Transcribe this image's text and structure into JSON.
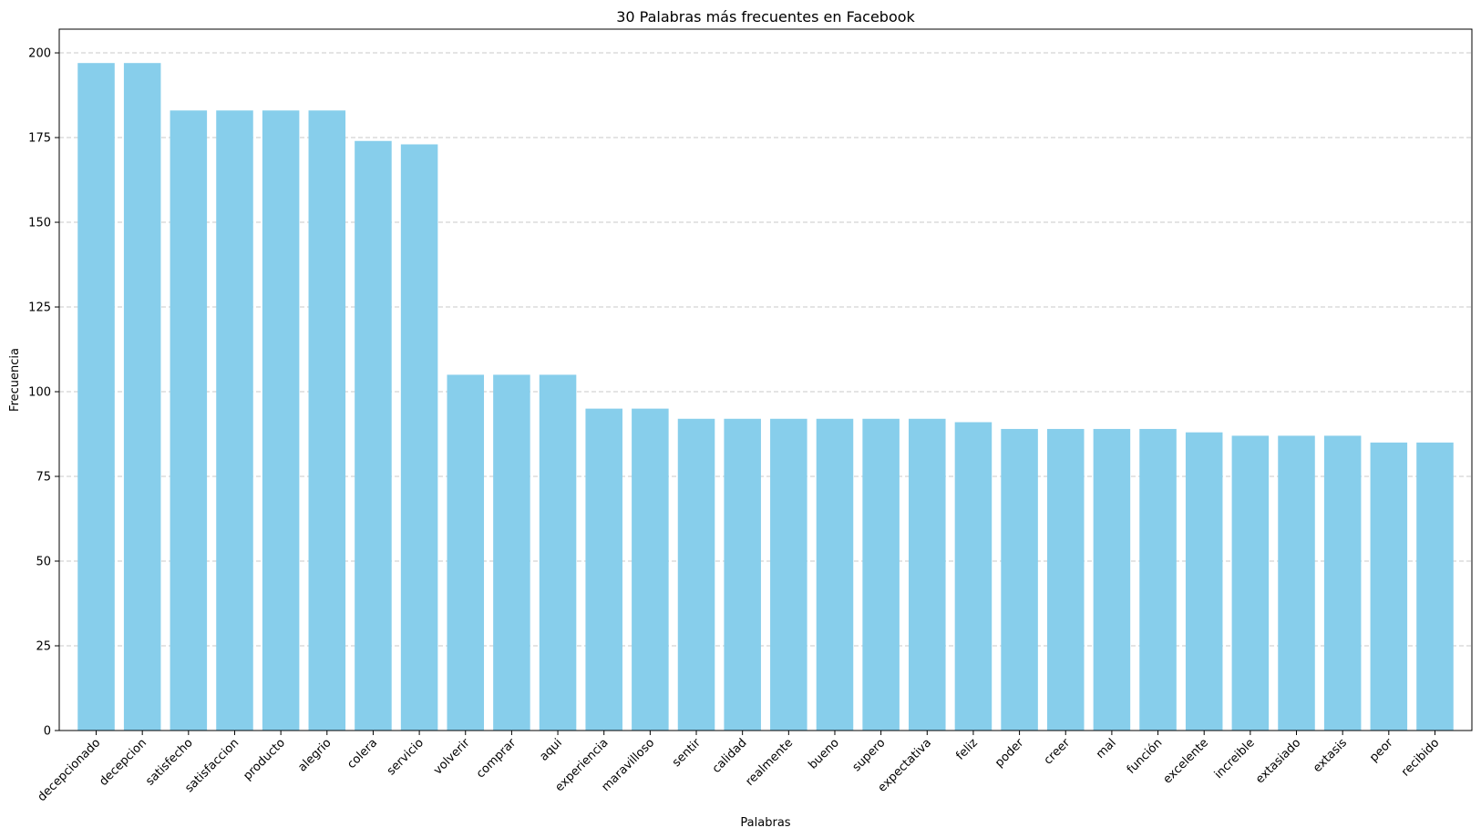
{
  "chart_data": {
    "type": "bar",
    "title": "30 Palabras más frecuentes en Facebook",
    "xlabel": "Palabras",
    "ylabel": "Frecuencia",
    "ylim": [
      0,
      207
    ],
    "yticks": [
      0,
      25,
      50,
      75,
      100,
      125,
      150,
      175,
      200
    ],
    "grid": "y-dashed",
    "bar_color": "#87CEEB",
    "grid_color": "#c8c8c8",
    "categories": [
      "decepcionado",
      "decepcion",
      "satisfecho",
      "satisfaccion",
      "producto",
      "alegrio",
      "colera",
      "servicio",
      "volverir",
      "comprar",
      "aqui",
      "experiencia",
      "maravilloso",
      "sentir",
      "calidad",
      "realmente",
      "bueno",
      "supero",
      "expectativa",
      "feliz",
      "poder",
      "creer",
      "mal",
      "función",
      "excelente",
      "increible",
      "extasiado",
      "extasis",
      "peor",
      "recibido"
    ],
    "values": [
      197,
      197,
      183,
      183,
      183,
      183,
      174,
      173,
      105,
      105,
      105,
      95,
      95,
      92,
      92,
      92,
      92,
      92,
      92,
      91,
      89,
      89,
      89,
      89,
      88,
      87,
      87,
      87,
      85,
      85
    ]
  }
}
